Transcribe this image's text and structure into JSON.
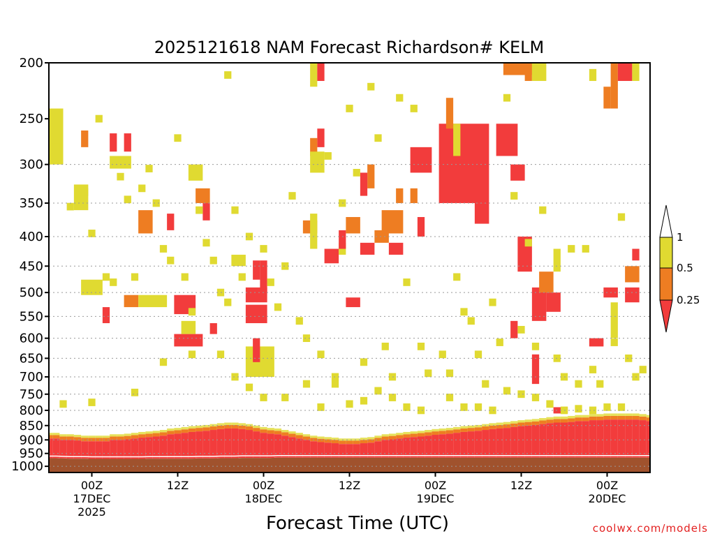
{
  "chart_data": {
    "type": "heatmap",
    "title": "2025121618 NAM Forecast Richardson# KELM",
    "xlabel": "Forecast Time (UTC)",
    "ylabel": "",
    "y_axis": {
      "scale": "log-pressure",
      "units": "mb",
      "range": [
        1025,
        200
      ],
      "ticks": [
        "200",
        "250",
        "300",
        "350",
        "400",
        "450",
        "500",
        "550",
        "600",
        "650",
        "700",
        "750",
        "800",
        "850",
        "900",
        "950",
        "1000"
      ],
      "gridlines": [
        "300",
        "350",
        "400",
        "450",
        "500",
        "550",
        "600",
        "650",
        "700",
        "750",
        "800",
        "850",
        "900",
        "950",
        "1000"
      ]
    },
    "x_axis": {
      "units": "hours since 2025-12-16 18Z",
      "range": [
        0,
        84
      ],
      "ticks": [
        {
          "hour": 6,
          "lines": [
            "00Z",
            "17DEC",
            "2025"
          ]
        },
        {
          "hour": 18,
          "lines": [
            "12Z"
          ]
        },
        {
          "hour": 30,
          "lines": [
            "00Z",
            "18DEC"
          ]
        },
        {
          "hour": 42,
          "lines": [
            "12Z"
          ]
        },
        {
          "hour": 54,
          "lines": [
            "00Z",
            "19DEC"
          ]
        },
        {
          "hour": 66,
          "lines": [
            "12Z"
          ]
        },
        {
          "hour": 78,
          "lines": [
            "00Z",
            "20DEC"
          ]
        }
      ]
    },
    "legend": {
      "placement": "right",
      "levels": [
        "1",
        "0.5",
        "0.25"
      ],
      "bins": [
        {
          "label": "> 1",
          "color": "#ffffff"
        },
        {
          "label": "0.5 - 1",
          "color": "#e0da31"
        },
        {
          "label": "0.25 - 0.5",
          "color": "#ee7d22"
        },
        {
          "label": "< 0.25",
          "color": "#f23c3c"
        }
      ]
    },
    "terrain_color": "#a0522d",
    "cell_colors": {
      "y": "#e0da31",
      "o": "#ee7d22",
      "r": "#f23c3c"
    },
    "surface_pressure_mb": [
      968,
      968,
      969,
      970,
      970,
      970,
      971,
      971,
      971,
      971,
      971,
      971,
      971,
      971,
      970,
      970,
      970,
      970,
      970,
      970,
      970,
      969,
      969,
      969,
      968,
      968,
      968,
      967,
      967,
      967,
      967,
      967,
      966,
      966,
      966,
      966,
      966,
      966,
      966,
      966,
      966,
      966,
      966,
      966,
      966,
      966,
      966,
      966,
      966,
      966,
      966,
      966,
      966,
      966,
      966,
      966,
      966,
      966,
      966,
      966,
      966,
      966,
      966,
      966,
      966,
      966,
      966,
      966,
      966,
      966,
      966,
      966,
      966,
      966,
      966,
      966,
      966,
      966,
      966,
      966,
      966,
      966,
      966,
      966,
      966
    ],
    "low_red_layer_top_mb": [
      895,
      895,
      900,
      900,
      902,
      905,
      905,
      905,
      905,
      900,
      900,
      898,
      895,
      892,
      890,
      888,
      885,
      880,
      878,
      875,
      872,
      870,
      868,
      865,
      862,
      860,
      860,
      862,
      865,
      870,
      875,
      878,
      880,
      885,
      890,
      895,
      900,
      905,
      908,
      910,
      912,
      915,
      915,
      915,
      912,
      910,
      905,
      900,
      898,
      895,
      892,
      890,
      888,
      885,
      882,
      880,
      878,
      875,
      872,
      870,
      868,
      865,
      862,
      860,
      858,
      855,
      852,
      850,
      848,
      845,
      842,
      840,
      840,
      838,
      835,
      835,
      832,
      832,
      830,
      830,
      830,
      830,
      830,
      832,
      835
    ],
    "patches": [
      {
        "t0": 0,
        "t1": 2,
        "p0": 240,
        "p1": 300,
        "c": "y"
      },
      {
        "t0": 4.5,
        "t1": 5.5,
        "p0": 262,
        "p1": 280,
        "c": "o"
      },
      {
        "t0": 8.5,
        "t1": 9.5,
        "p0": 265,
        "p1": 285,
        "c": "r"
      },
      {
        "t0": 10.5,
        "t1": 11.5,
        "p0": 265,
        "p1": 285,
        "c": "r"
      },
      {
        "t0": 8.5,
        "t1": 11.5,
        "p0": 290,
        "p1": 305,
        "c": "y"
      },
      {
        "t0": 3.5,
        "t1": 5.5,
        "p0": 325,
        "p1": 360,
        "c": "y"
      },
      {
        "t0": 12.5,
        "t1": 14.5,
        "p0": 360,
        "p1": 395,
        "c": "o"
      },
      {
        "t0": 16.5,
        "t1": 17.5,
        "p0": 365,
        "p1": 390,
        "c": "r"
      },
      {
        "t0": 19.5,
        "t1": 21.5,
        "p0": 300,
        "p1": 320,
        "c": "y"
      },
      {
        "t0": 20.5,
        "t1": 22.5,
        "p0": 330,
        "p1": 350,
        "c": "o"
      },
      {
        "t0": 21.5,
        "t1": 22.5,
        "p0": 350,
        "p1": 375,
        "c": "r"
      },
      {
        "t0": 4.5,
        "t1": 7.5,
        "p0": 475,
        "p1": 505,
        "c": "y"
      },
      {
        "t0": 7.5,
        "t1": 8.5,
        "p0": 530,
        "p1": 565,
        "c": "r"
      },
      {
        "t0": 10.5,
        "t1": 12.5,
        "p0": 505,
        "p1": 530,
        "c": "o"
      },
      {
        "t0": 12.5,
        "t1": 16.5,
        "p0": 505,
        "p1": 530,
        "c": "y"
      },
      {
        "t0": 17.5,
        "t1": 20.5,
        "p0": 505,
        "p1": 545,
        "c": "r"
      },
      {
        "t0": 17.5,
        "t1": 21.5,
        "p0": 590,
        "p1": 620,
        "c": "r"
      },
      {
        "t0": 18.5,
        "t1": 20.5,
        "p0": 560,
        "p1": 590,
        "c": "y"
      },
      {
        "t0": 22.5,
        "t1": 23.5,
        "p0": 565,
        "p1": 590,
        "c": "r"
      },
      {
        "t0": 25.5,
        "t1": 27.5,
        "p0": 430,
        "p1": 450,
        "c": "y"
      },
      {
        "t0": 28.5,
        "t1": 29.5,
        "p0": 440,
        "p1": 475,
        "c": "r"
      },
      {
        "t0": 27.5,
        "t1": 30.5,
        "p0": 490,
        "p1": 520,
        "c": "r"
      },
      {
        "t0": 27.5,
        "t1": 30.5,
        "p0": 525,
        "p1": 565,
        "c": "r"
      },
      {
        "t0": 29.5,
        "t1": 30.5,
        "p0": 440,
        "p1": 500,
        "c": "r"
      },
      {
        "t0": 27.5,
        "t1": 31.5,
        "p0": 620,
        "p1": 700,
        "c": "y"
      },
      {
        "t0": 28.5,
        "t1": 29.5,
        "p0": 600,
        "p1": 660,
        "c": "r"
      },
      {
        "t0": 35.5,
        "t1": 37.5,
        "p0": 375,
        "p1": 395,
        "c": "o"
      },
      {
        "t0": 36.5,
        "t1": 37.5,
        "p0": 365,
        "p1": 420,
        "c": "y"
      },
      {
        "t0": 37.5,
        "t1": 38.5,
        "p0": 260,
        "p1": 280,
        "c": "r"
      },
      {
        "t0": 36.5,
        "t1": 37.5,
        "p0": 270,
        "p1": 290,
        "c": "o"
      },
      {
        "t0": 36.5,
        "t1": 38.5,
        "p0": 285,
        "p1": 310,
        "c": "y"
      },
      {
        "t0": 36.5,
        "t1": 37.5,
        "p0": 200,
        "p1": 220,
        "c": "y"
      },
      {
        "t0": 37.5,
        "t1": 38.5,
        "p0": 200,
        "p1": 215,
        "c": "r"
      },
      {
        "t0": 38.5,
        "t1": 40.5,
        "p0": 420,
        "p1": 445,
        "c": "r"
      },
      {
        "t0": 40.5,
        "t1": 41.5,
        "p0": 410,
        "p1": 430,
        "c": "y"
      },
      {
        "t0": 41.5,
        "t1": 43.5,
        "p0": 510,
        "p1": 530,
        "c": "r"
      },
      {
        "t0": 40.5,
        "t1": 41.5,
        "p0": 390,
        "p1": 420,
        "c": "r"
      },
      {
        "t0": 41.5,
        "t1": 43.5,
        "p0": 370,
        "p1": 395,
        "c": "o"
      },
      {
        "t0": 43.5,
        "t1": 45.5,
        "p0": 410,
        "p1": 430,
        "c": "r"
      },
      {
        "t0": 44.5,
        "t1": 45.5,
        "p0": 300,
        "p1": 330,
        "c": "o"
      },
      {
        "t0": 43.5,
        "t1": 44.5,
        "p0": 310,
        "p1": 340,
        "c": "r"
      },
      {
        "t0": 45.5,
        "t1": 47.5,
        "p0": 390,
        "p1": 410,
        "c": "o"
      },
      {
        "t0": 46.5,
        "t1": 49.5,
        "p0": 360,
        "p1": 395,
        "c": "o"
      },
      {
        "t0": 47.5,
        "t1": 49.5,
        "p0": 410,
        "p1": 430,
        "c": "r"
      },
      {
        "t0": 48.5,
        "t1": 49.5,
        "p0": 330,
        "p1": 350,
        "c": "o"
      },
      {
        "t0": 50.5,
        "t1": 51.5,
        "p0": 330,
        "p1": 350,
        "c": "o"
      },
      {
        "t0": 50.5,
        "t1": 53.5,
        "p0": 280,
        "p1": 310,
        "c": "r"
      },
      {
        "t0": 51.5,
        "t1": 52.5,
        "p0": 370,
        "p1": 400,
        "c": "r"
      },
      {
        "t0": 54.5,
        "t1": 61.5,
        "p0": 255,
        "p1": 350,
        "c": "r"
      },
      {
        "t0": 55.5,
        "t1": 56.5,
        "p0": 230,
        "p1": 260,
        "c": "o"
      },
      {
        "t0": 56.5,
        "t1": 57.5,
        "p0": 255,
        "p1": 290,
        "c": "y"
      },
      {
        "t0": 62.5,
        "t1": 65.5,
        "p0": 255,
        "p1": 290,
        "c": "r"
      },
      {
        "t0": 59.5,
        "t1": 61.5,
        "p0": 350,
        "p1": 380,
        "c": "r"
      },
      {
        "t0": 64.5,
        "t1": 66.5,
        "p0": 300,
        "p1": 320,
        "c": "r"
      },
      {
        "t0": 66.5,
        "t1": 67.5,
        "p0": 200,
        "p1": 215,
        "c": "o"
      },
      {
        "t0": 63.5,
        "t1": 67.5,
        "p0": 200,
        "p1": 210,
        "c": "o"
      },
      {
        "t0": 67.5,
        "t1": 69.5,
        "p0": 200,
        "p1": 215,
        "c": "y"
      },
      {
        "t0": 65.5,
        "t1": 67.5,
        "p0": 400,
        "p1": 460,
        "c": "r"
      },
      {
        "t0": 67.5,
        "t1": 69.5,
        "p0": 490,
        "p1": 560,
        "c": "r"
      },
      {
        "t0": 68.5,
        "t1": 70.5,
        "p0": 460,
        "p1": 500,
        "c": "o"
      },
      {
        "t0": 69.5,
        "t1": 71.5,
        "p0": 500,
        "p1": 540,
        "c": "r"
      },
      {
        "t0": 70.5,
        "t1": 71.5,
        "p0": 420,
        "p1": 460,
        "c": "y"
      },
      {
        "t0": 64.5,
        "t1": 65.5,
        "p0": 560,
        "p1": 600,
        "c": "r"
      },
      {
        "t0": 67.5,
        "t1": 68.5,
        "p0": 640,
        "p1": 720,
        "c": "r"
      },
      {
        "t0": 70.5,
        "t1": 72.5,
        "p0": 790,
        "p1": 810,
        "c": "r"
      },
      {
        "t0": 75.5,
        "t1": 77.5,
        "p0": 600,
        "p1": 620,
        "c": "r"
      },
      {
        "t0": 77.5,
        "t1": 78.5,
        "p0": 220,
        "p1": 240,
        "c": "o"
      },
      {
        "t0": 78.5,
        "t1": 79.5,
        "p0": 200,
        "p1": 240,
        "c": "o"
      },
      {
        "t0": 79.5,
        "t1": 81.5,
        "p0": 200,
        "p1": 215,
        "c": "r"
      },
      {
        "t0": 81.5,
        "t1": 82.5,
        "p0": 200,
        "p1": 215,
        "c": "y"
      },
      {
        "t0": 75.5,
        "t1": 76.5,
        "p0": 205,
        "p1": 215,
        "c": "y"
      },
      {
        "t0": 77.5,
        "t1": 79.5,
        "p0": 490,
        "p1": 510,
        "c": "r"
      },
      {
        "t0": 80.5,
        "t1": 82.5,
        "p0": 490,
        "p1": 520,
        "c": "r"
      },
      {
        "t0": 80.5,
        "t1": 82.5,
        "p0": 450,
        "p1": 480,
        "c": "o"
      },
      {
        "t0": 78.5,
        "t1": 79.5,
        "p0": 520,
        "p1": 600,
        "c": "y"
      },
      {
        "t0": 81.5,
        "t1": 82.5,
        "p0": 420,
        "p1": 440,
        "c": "r"
      }
    ],
    "yellow_specks": [
      [
        1,
        280
      ],
      [
        3,
        355
      ],
      [
        5,
        335
      ],
      [
        6,
        395
      ],
      [
        7,
        250
      ],
      [
        8,
        470
      ],
      [
        9,
        480
      ],
      [
        10,
        315
      ],
      [
        11,
        345
      ],
      [
        12,
        470
      ],
      [
        13,
        330
      ],
      [
        14,
        305
      ],
      [
        15,
        350
      ],
      [
        16,
        420
      ],
      [
        17,
        440
      ],
      [
        18,
        270
      ],
      [
        19,
        470
      ],
      [
        20,
        540
      ],
      [
        21,
        360
      ],
      [
        22,
        410
      ],
      [
        23,
        440
      ],
      [
        24,
        500
      ],
      [
        25,
        520
      ],
      [
        25,
        210
      ],
      [
        26,
        360
      ],
      [
        27,
        470
      ],
      [
        28,
        400
      ],
      [
        30,
        420
      ],
      [
        31,
        480
      ],
      [
        32,
        530
      ],
      [
        33,
        450
      ],
      [
        34,
        340
      ],
      [
        35,
        560
      ],
      [
        36,
        600
      ],
      [
        38,
        640
      ],
      [
        39,
        290
      ],
      [
        40,
        720
      ],
      [
        41,
        350
      ],
      [
        42,
        240
      ],
      [
        43,
        310
      ],
      [
        44,
        660
      ],
      [
        45,
        220
      ],
      [
        46,
        270
      ],
      [
        47,
        620
      ],
      [
        48,
        700
      ],
      [
        49,
        230
      ],
      [
        50,
        480
      ],
      [
        51,
        240
      ],
      [
        52,
        620
      ],
      [
        53,
        690
      ],
      [
        55,
        640
      ],
      [
        56,
        690
      ],
      [
        57,
        470
      ],
      [
        58,
        540
      ],
      [
        59,
        560
      ],
      [
        60,
        640
      ],
      [
        61,
        720
      ],
      [
        62,
        520
      ],
      [
        63,
        610
      ],
      [
        64,
        230
      ],
      [
        65,
        340
      ],
      [
        66,
        580
      ],
      [
        67,
        410
      ],
      [
        68,
        620
      ],
      [
        69,
        360
      ],
      [
        71,
        650
      ],
      [
        72,
        700
      ],
      [
        73,
        420
      ],
      [
        74,
        720
      ],
      [
        75,
        420
      ],
      [
        76,
        680
      ],
      [
        77,
        720
      ],
      [
        79,
        610
      ],
      [
        80,
        370
      ],
      [
        81,
        650
      ],
      [
        82,
        700
      ],
      [
        83,
        680
      ],
      [
        2,
        780
      ],
      [
        6,
        775
      ],
      [
        12,
        745
      ],
      [
        16,
        660
      ],
      [
        20,
        640
      ],
      [
        24,
        640
      ],
      [
        26,
        700
      ],
      [
        28,
        730
      ],
      [
        30,
        760
      ],
      [
        33,
        760
      ],
      [
        36,
        720
      ],
      [
        38,
        790
      ],
      [
        40,
        700
      ],
      [
        42,
        780
      ],
      [
        44,
        770
      ],
      [
        46,
        740
      ],
      [
        48,
        760
      ],
      [
        50,
        790
      ],
      [
        52,
        800
      ],
      [
        56,
        760
      ],
      [
        58,
        790
      ],
      [
        60,
        790
      ],
      [
        62,
        800
      ],
      [
        64,
        740
      ],
      [
        66,
        750
      ],
      [
        68,
        760
      ],
      [
        70,
        780
      ],
      [
        72,
        800
      ],
      [
        74,
        795
      ],
      [
        76,
        800
      ],
      [
        78,
        790
      ],
      [
        80,
        790
      ]
    ]
  },
  "credit": "coolwx.com/models"
}
